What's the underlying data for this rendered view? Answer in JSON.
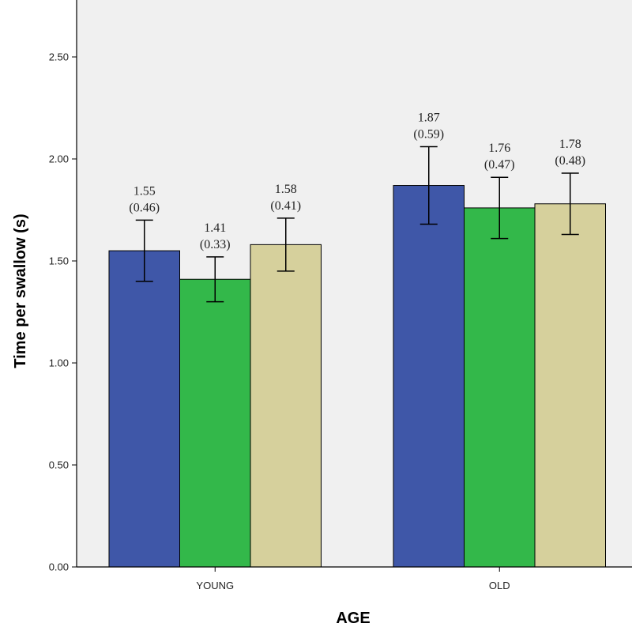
{
  "chart_data": {
    "type": "bar",
    "title": "",
    "xlabel": "AGE",
    "ylabel": "Time per swallow (s)",
    "ylim": [
      0,
      2.8
    ],
    "yticks": [
      "0.00",
      "0.50",
      "1.00",
      "1.50",
      "2.00",
      "2.50"
    ],
    "ytick_values": [
      0,
      0.5,
      1.0,
      1.5,
      2.0,
      2.5
    ],
    "categories": [
      "YOUNG",
      "OLD"
    ],
    "grid": false,
    "legend": "none",
    "series": [
      {
        "name": "series-1",
        "color": "#3f57a8",
        "values": [
          1.55,
          1.87
        ],
        "errors": [
          0.15,
          0.19
        ],
        "labels": [
          "1.55",
          "1.87"
        ],
        "sd_labels": [
          "(0.46)",
          "(0.59)"
        ]
      },
      {
        "name": "series-2",
        "color": "#33b84a",
        "values": [
          1.41,
          1.76
        ],
        "errors": [
          0.11,
          0.15
        ],
        "labels": [
          "1.41",
          "1.76"
        ],
        "sd_labels": [
          "(0.33)",
          "(0.47)"
        ]
      },
      {
        "name": "series-3",
        "color": "#d6d09c",
        "values": [
          1.58,
          1.78
        ],
        "errors": [
          0.13,
          0.15
        ],
        "labels": [
          "1.58",
          "1.78"
        ],
        "sd_labels": [
          "(0.41)",
          "(0.48)"
        ]
      }
    ]
  }
}
